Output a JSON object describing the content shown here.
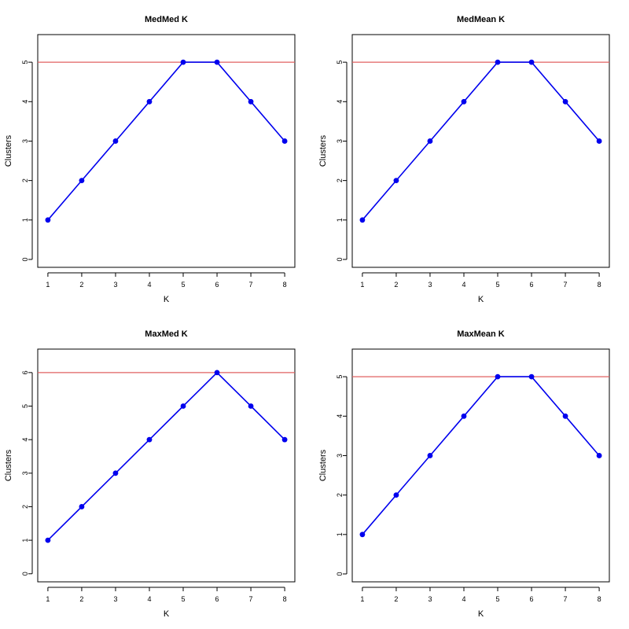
{
  "chart_data": [
    {
      "type": "line",
      "title": "MedMed K",
      "xlabel": "K",
      "ylabel": "Clusters",
      "x": [
        1,
        2,
        3,
        4,
        5,
        6,
        7,
        8
      ],
      "series": [
        {
          "values": [
            1,
            2,
            3,
            4,
            5,
            5,
            4,
            3
          ],
          "color": "#0000ee"
        }
      ],
      "reference_line": {
        "y": 5,
        "color": "#e06060"
      },
      "xticks": [
        1,
        2,
        3,
        4,
        5,
        6,
        7,
        8
      ],
      "yticks": [
        0,
        1,
        2,
        3,
        4,
        5
      ],
      "xlim": [
        0.7,
        8.3
      ],
      "ylim": [
        -0.2,
        5.7
      ]
    },
    {
      "type": "line",
      "title": "MedMean K",
      "xlabel": "K",
      "ylabel": "Clusters",
      "x": [
        1,
        2,
        3,
        4,
        5,
        6,
        7,
        8
      ],
      "series": [
        {
          "values": [
            1,
            2,
            3,
            4,
            5,
            5,
            4,
            3
          ],
          "color": "#0000ee"
        }
      ],
      "reference_line": {
        "y": 5,
        "color": "#e06060"
      },
      "xticks": [
        1,
        2,
        3,
        4,
        5,
        6,
        7,
        8
      ],
      "yticks": [
        0,
        1,
        2,
        3,
        4,
        5
      ],
      "xlim": [
        0.7,
        8.3
      ],
      "ylim": [
        -0.2,
        5.7
      ]
    },
    {
      "type": "line",
      "title": "MaxMed K",
      "xlabel": "K",
      "ylabel": "Clusters",
      "x": [
        1,
        2,
        3,
        4,
        5,
        6,
        7,
        8
      ],
      "series": [
        {
          "values": [
            1,
            2,
            3,
            4,
            5,
            6,
            5,
            4
          ],
          "color": "#0000ee"
        }
      ],
      "reference_line": {
        "y": 6,
        "color": "#e06060"
      },
      "xticks": [
        1,
        2,
        3,
        4,
        5,
        6,
        7,
        8
      ],
      "yticks": [
        0,
        1,
        2,
        3,
        4,
        5,
        6
      ],
      "xlim": [
        0.7,
        8.3
      ],
      "ylim": [
        -0.24,
        6.7
      ]
    },
    {
      "type": "line",
      "title": "MaxMean K",
      "xlabel": "K",
      "ylabel": "Clusters",
      "x": [
        1,
        2,
        3,
        4,
        5,
        6,
        7,
        8
      ],
      "series": [
        {
          "values": [
            1,
            2,
            3,
            4,
            5,
            5,
            4,
            3
          ],
          "color": "#0000ee"
        }
      ],
      "reference_line": {
        "y": 5,
        "color": "#e06060"
      },
      "xticks": [
        1,
        2,
        3,
        4,
        5,
        6,
        7,
        8
      ],
      "yticks": [
        0,
        1,
        2,
        3,
        4,
        5
      ],
      "xlim": [
        0.7,
        8.3
      ],
      "ylim": [
        -0.2,
        5.7
      ]
    }
  ]
}
